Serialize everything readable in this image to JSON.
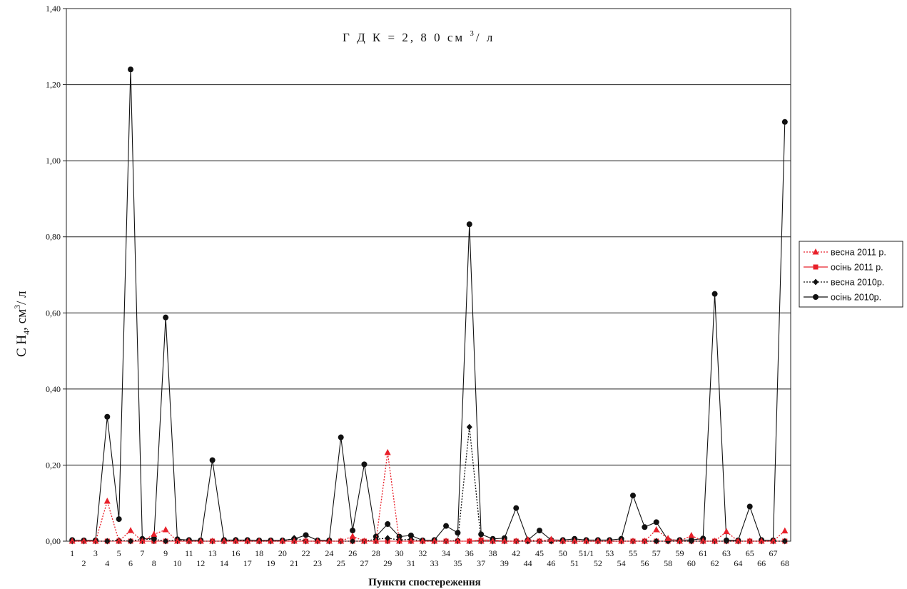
{
  "chart_data": {
    "type": "line",
    "title": "ГДК  = 2,80 см³/ л",
    "title_parts": {
      "main": "Г Д К    =  2, 8 0    см ",
      "sup": "3",
      "tail": "/  л"
    },
    "xlabel": "Пункти спостереження",
    "ylabel": "СН₄, см³/ л",
    "ylabel_parts": {
      "a": "С Н",
      "sub": "4",
      "b": ", см",
      "sup": "3",
      "c": "/ л"
    },
    "ylim": [
      0,
      1.4
    ],
    "yticks": [
      0,
      0.2,
      0.4,
      0.6,
      0.8,
      1.0,
      1.2,
      1.4
    ],
    "ytick_labels": [
      "0,00",
      "0,20",
      "0,40",
      "0,60",
      "0,80",
      "1,00",
      "1,20",
      "1,40"
    ],
    "grid": true,
    "legend_position": "right",
    "categories": [
      "1",
      "2",
      "3",
      "4",
      "5",
      "6",
      "7",
      "8",
      "9",
      "10",
      "11",
      "12",
      "13",
      "14",
      "16",
      "17",
      "18",
      "19",
      "20",
      "21",
      "22",
      "23",
      "24",
      "25",
      "26",
      "27",
      "28",
      "29",
      "30",
      "31",
      "32",
      "33",
      "34",
      "35",
      "36",
      "37",
      "38",
      "39",
      "42",
      "44",
      "45",
      "46",
      "50",
      "51",
      "51/1",
      "52",
      "53",
      "54",
      "55",
      "56",
      "57",
      "58",
      "59",
      "60",
      "61",
      "62",
      "63",
      "64",
      "65",
      "66",
      "67",
      "68"
    ],
    "colors": {
      "red": "#e8202a",
      "black": "#111111",
      "grid": "#222222"
    },
    "series": [
      {
        "name": "весна 2011 р.",
        "marker": "triangle",
        "line": "dotted",
        "color": "#e8202a",
        "values": [
          0,
          0,
          0,
          0.105,
          0,
          0.028,
          0,
          0.018,
          0.03,
          0,
          0,
          0,
          0,
          0,
          0,
          0,
          0,
          0,
          0,
          0,
          0,
          0,
          0,
          0,
          0.013,
          0,
          0,
          0.233,
          0,
          0,
          0,
          0,
          0,
          0,
          0,
          0,
          0,
          0,
          0,
          0.004,
          0,
          0.005,
          0,
          0,
          0,
          0,
          0,
          0,
          0,
          0,
          0.03,
          0.007,
          0,
          0.015,
          0,
          0,
          0.025,
          0,
          0,
          0,
          0,
          0.027
        ]
      },
      {
        "name": "осінь  2011 р.",
        "marker": "square",
        "line": "solid",
        "color": "#e8202a",
        "values": [
          0,
          0,
          0,
          0,
          0,
          0,
          0,
          0,
          0,
          0,
          0,
          0,
          0,
          0,
          0,
          0,
          0,
          0,
          0,
          0,
          0,
          0,
          0,
          0,
          0,
          0,
          0,
          0,
          0,
          0,
          0,
          0,
          0,
          0,
          0,
          0.003,
          0.003,
          0,
          0,
          0,
          0,
          0,
          0,
          0,
          0,
          0,
          0,
          0,
          0,
          0,
          0,
          0,
          0,
          0,
          0,
          0,
          0,
          0,
          0,
          0,
          0,
          0
        ]
      },
      {
        "name": "весна 2010р.",
        "marker": "diamond",
        "line": "dotted",
        "color": "#111111",
        "values": [
          0,
          0,
          0,
          0,
          0.002,
          0,
          0.005,
          0.005,
          0,
          0.003,
          0,
          0,
          0,
          0,
          0.003,
          0,
          0,
          0,
          0,
          0.008,
          0,
          0,
          0,
          0,
          0,
          0,
          0.005,
          0.008,
          0.003,
          0.005,
          0,
          0,
          0,
          0.002,
          0.3,
          0,
          0,
          0,
          0,
          0,
          0,
          0,
          0,
          0,
          0,
          0,
          0,
          0,
          0,
          0,
          0,
          0,
          0,
          0,
          0,
          0,
          0,
          0,
          0,
          0,
          0,
          0
        ]
      },
      {
        "name": "осінь  2010р.",
        "marker": "circle",
        "line": "solid",
        "color": "#111111",
        "values": [
          0.003,
          0.002,
          0.002,
          0.327,
          0.058,
          1.24,
          0.006,
          0.007,
          0.588,
          0.005,
          0.003,
          0.002,
          0.213,
          0.003,
          0.003,
          0.003,
          0.002,
          0.002,
          0.002,
          0.006,
          0.016,
          0.002,
          0.002,
          0.273,
          0.028,
          0.202,
          0.012,
          0.045,
          0.012,
          0.015,
          0.002,
          0.003,
          0.04,
          0.022,
          0.833,
          0.018,
          0.006,
          0.008,
          0.087,
          0.003,
          0.028,
          0.003,
          0.003,
          0.006,
          0.003,
          0.003,
          0.003,
          0.006,
          0.12,
          0.037,
          0.05,
          0.003,
          0.003,
          0.003,
          0.007,
          0.65,
          0.002,
          0.002,
          0.091,
          0.003,
          0.002,
          1.102
        ]
      }
    ]
  }
}
